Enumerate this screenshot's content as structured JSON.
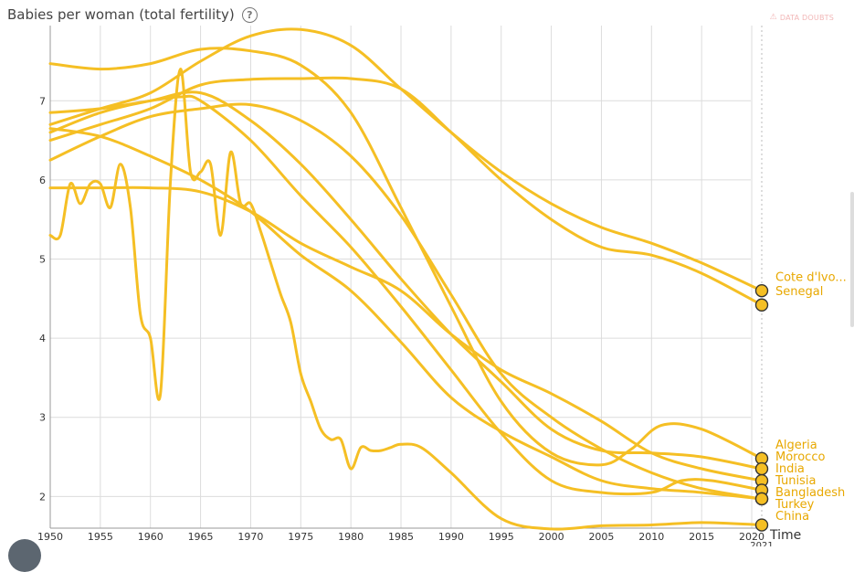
{
  "header": {
    "title": "Babies per woman (total fertility)",
    "help_icon": "question-circle-icon",
    "doubts_label": "DATA DOUBTS",
    "doubts_icon": "warning-icon"
  },
  "axis": {
    "time_label": "Time",
    "end_year_label": "2021"
  },
  "colors": {
    "series": "#f5bf24",
    "series_stroke": "#e3aa16",
    "label": "#e8a800",
    "grid": "#dcdcdc"
  },
  "chart_data": {
    "type": "line",
    "x_ticks": [
      1950,
      1955,
      1960,
      1965,
      1970,
      1975,
      1980,
      1985,
      1990,
      1995,
      2000,
      2005,
      2010,
      2015,
      2020
    ],
    "y_ticks": [
      2,
      3,
      4,
      5,
      6,
      7
    ],
    "xlim": [
      1950,
      2021
    ],
    "ylim": [
      1.6,
      7.95
    ],
    "grid": true,
    "series": [
      {
        "name": "Cote d'Ivo...",
        "end": 4.6,
        "points": [
          [
            1950,
            6.7
          ],
          [
            1955,
            6.9
          ],
          [
            1960,
            7.1
          ],
          [
            1965,
            7.5
          ],
          [
            1970,
            7.82
          ],
          [
            1975,
            7.9
          ],
          [
            1980,
            7.7
          ],
          [
            1985,
            7.15
          ],
          [
            1990,
            6.6
          ],
          [
            1995,
            6.1
          ],
          [
            2000,
            5.7
          ],
          [
            2005,
            5.4
          ],
          [
            2010,
            5.2
          ],
          [
            2015,
            4.95
          ],
          [
            2021,
            4.6
          ]
        ]
      },
      {
        "name": "Senegal",
        "end": 4.42,
        "points": [
          [
            1950,
            6.5
          ],
          [
            1955,
            6.7
          ],
          [
            1960,
            6.9
          ],
          [
            1965,
            7.2
          ],
          [
            1970,
            7.27
          ],
          [
            1975,
            7.28
          ],
          [
            1980,
            7.28
          ],
          [
            1985,
            7.15
          ],
          [
            1990,
            6.6
          ],
          [
            1995,
            6.0
          ],
          [
            2000,
            5.5
          ],
          [
            2005,
            5.15
          ],
          [
            2010,
            5.05
          ],
          [
            2015,
            4.82
          ],
          [
            2021,
            4.42
          ]
        ]
      },
      {
        "name": "Algeria",
        "end": 2.48,
        "points": [
          [
            1950,
            7.47
          ],
          [
            1955,
            7.4
          ],
          [
            1960,
            7.47
          ],
          [
            1965,
            7.65
          ],
          [
            1970,
            7.63
          ],
          [
            1975,
            7.45
          ],
          [
            1980,
            6.85
          ],
          [
            1985,
            5.65
          ],
          [
            1990,
            4.4
          ],
          [
            1995,
            3.2
          ],
          [
            2000,
            2.55
          ],
          [
            2005,
            2.4
          ],
          [
            2008,
            2.6
          ],
          [
            2011,
            2.9
          ],
          [
            2015,
            2.85
          ],
          [
            2021,
            2.48
          ]
        ]
      },
      {
        "name": "Morocco",
        "end": 2.35,
        "points": [
          [
            1950,
            6.6
          ],
          [
            1955,
            6.85
          ],
          [
            1960,
            7.0
          ],
          [
            1965,
            7.1
          ],
          [
            1970,
            6.75
          ],
          [
            1975,
            6.2
          ],
          [
            1980,
            5.5
          ],
          [
            1985,
            4.75
          ],
          [
            1990,
            4.05
          ],
          [
            1995,
            3.45
          ],
          [
            2000,
            2.85
          ],
          [
            2005,
            2.58
          ],
          [
            2010,
            2.55
          ],
          [
            2015,
            2.5
          ],
          [
            2021,
            2.35
          ]
        ]
      },
      {
        "name": "India",
        "end": 2.2,
        "points": [
          [
            1950,
            5.9
          ],
          [
            1955,
            5.9
          ],
          [
            1960,
            5.9
          ],
          [
            1965,
            5.85
          ],
          [
            1970,
            5.6
          ],
          [
            1975,
            5.2
          ],
          [
            1980,
            4.9
          ],
          [
            1985,
            4.6
          ],
          [
            1990,
            4.05
          ],
          [
            1995,
            3.6
          ],
          [
            2000,
            3.3
          ],
          [
            2005,
            2.95
          ],
          [
            2010,
            2.55
          ],
          [
            2015,
            2.35
          ],
          [
            2021,
            2.2
          ]
        ]
      },
      {
        "name": "Tunisia",
        "end": 2.08,
        "points": [
          [
            1950,
            6.85
          ],
          [
            1955,
            6.9
          ],
          [
            1960,
            7.0
          ],
          [
            1963,
            7.05
          ],
          [
            1965,
            7.0
          ],
          [
            1970,
            6.5
          ],
          [
            1975,
            5.8
          ],
          [
            1980,
            5.15
          ],
          [
            1985,
            4.4
          ],
          [
            1990,
            3.6
          ],
          [
            1995,
            2.8
          ],
          [
            2000,
            2.2
          ],
          [
            2005,
            2.05
          ],
          [
            2010,
            2.05
          ],
          [
            2013,
            2.2
          ],
          [
            2016,
            2.2
          ],
          [
            2021,
            2.08
          ]
        ]
      },
      {
        "name": "Bangladesh",
        "end": 1.97,
        "points": [
          [
            1950,
            6.25
          ],
          [
            1955,
            6.55
          ],
          [
            1960,
            6.8
          ],
          [
            1965,
            6.9
          ],
          [
            1970,
            6.95
          ],
          [
            1975,
            6.75
          ],
          [
            1980,
            6.3
          ],
          [
            1985,
            5.55
          ],
          [
            1990,
            4.55
          ],
          [
            1995,
            3.55
          ],
          [
            2000,
            3.0
          ],
          [
            2005,
            2.6
          ],
          [
            2010,
            2.3
          ],
          [
            2015,
            2.1
          ],
          [
            2021,
            1.97
          ]
        ]
      },
      {
        "name": "Turkey",
        "end": 1.97,
        "points": [
          [
            1950,
            6.65
          ],
          [
            1955,
            6.55
          ],
          [
            1960,
            6.3
          ],
          [
            1965,
            6.0
          ],
          [
            1970,
            5.6
          ],
          [
            1975,
            5.05
          ],
          [
            1980,
            4.6
          ],
          [
            1985,
            3.95
          ],
          [
            1990,
            3.25
          ],
          [
            1995,
            2.82
          ],
          [
            2000,
            2.5
          ],
          [
            2005,
            2.2
          ],
          [
            2010,
            2.1
          ],
          [
            2015,
            2.05
          ],
          [
            2021,
            1.97
          ]
        ]
      },
      {
        "name": "China",
        "end": 1.64,
        "points": [
          [
            1950,
            5.3
          ],
          [
            1951,
            5.3
          ],
          [
            1952,
            5.95
          ],
          [
            1953,
            5.7
          ],
          [
            1954,
            5.95
          ],
          [
            1955,
            5.95
          ],
          [
            1956,
            5.65
          ],
          [
            1957,
            6.2
          ],
          [
            1958,
            5.65
          ],
          [
            1959,
            4.3
          ],
          [
            1960,
            4.0
          ],
          [
            1961,
            3.3
          ],
          [
            1962,
            6.0
          ],
          [
            1963,
            7.4
          ],
          [
            1964,
            6.1
          ],
          [
            1965,
            6.1
          ],
          [
            1966,
            6.2
          ],
          [
            1967,
            5.3
          ],
          [
            1968,
            6.35
          ],
          [
            1969,
            5.7
          ],
          [
            1970,
            5.7
          ],
          [
            1971,
            5.35
          ],
          [
            1972,
            4.95
          ],
          [
            1973,
            4.55
          ],
          [
            1974,
            4.2
          ],
          [
            1975,
            3.55
          ],
          [
            1976,
            3.2
          ],
          [
            1977,
            2.85
          ],
          [
            1978,
            2.72
          ],
          [
            1979,
            2.72
          ],
          [
            1980,
            2.35
          ],
          [
            1981,
            2.62
          ],
          [
            1982,
            2.58
          ],
          [
            1983,
            2.58
          ],
          [
            1984,
            2.62
          ],
          [
            1985,
            2.66
          ],
          [
            1987,
            2.62
          ],
          [
            1990,
            2.3
          ],
          [
            1995,
            1.72
          ],
          [
            2000,
            1.59
          ],
          [
            2005,
            1.63
          ],
          [
            2010,
            1.64
          ],
          [
            2015,
            1.67
          ],
          [
            2021,
            1.64
          ]
        ]
      }
    ]
  }
}
